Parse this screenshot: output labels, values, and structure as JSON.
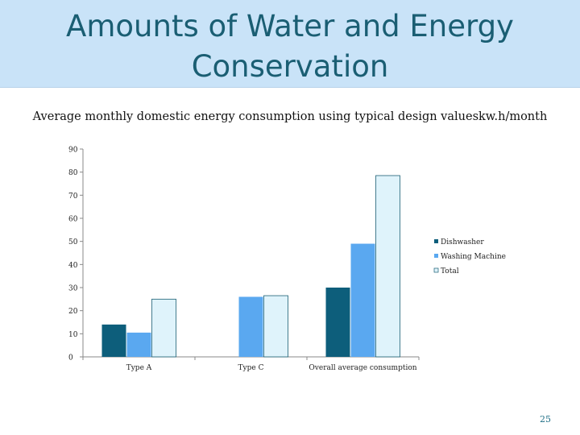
{
  "slide": {
    "title_line1": "Amounts of Water and Energy",
    "title_line2": "Conservation",
    "page_number": "25"
  },
  "colors": {
    "title_band": "#c9e3f8",
    "title_text": "#1a5e73",
    "series": [
      "#0d5e7b",
      "#5aa8f0",
      "#dff3fb"
    ]
  },
  "chart_data": {
    "type": "bar",
    "title": "Average monthly domestic energy consumption using typical design valueskw.h/month",
    "categories": [
      "Type A",
      "Type C",
      "Overall average consumption"
    ],
    "series": [
      {
        "name": "Dishwasher",
        "values": [
          14,
          null,
          30
        ]
      },
      {
        "name": "Washing Machine",
        "values": [
          10.5,
          26,
          49
        ]
      },
      {
        "name": "Total",
        "values": [
          25,
          26.5,
          78.5
        ]
      }
    ],
    "yticks": [
      0,
      10,
      20,
      30,
      40,
      50,
      60,
      70,
      80,
      90
    ],
    "ylim": [
      0,
      90
    ],
    "grid": false,
    "legend_position": "right"
  }
}
